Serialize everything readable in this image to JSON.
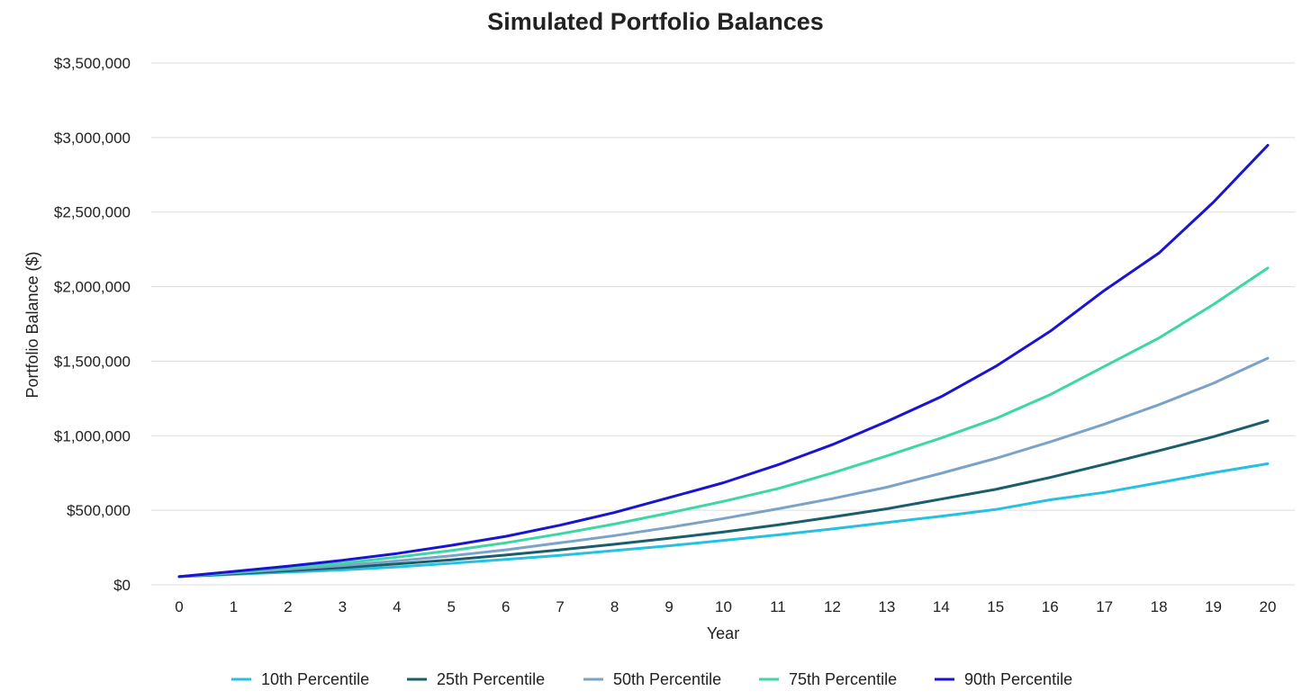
{
  "chart_data": {
    "type": "line",
    "title": "Simulated Portfolio Balances",
    "xlabel": "Year",
    "ylabel": "Portfolio Balance ($)",
    "x": [
      0,
      1,
      2,
      3,
      4,
      5,
      6,
      7,
      8,
      9,
      10,
      11,
      12,
      13,
      14,
      15,
      16,
      17,
      18,
      19,
      20
    ],
    "x_tick_labels": [
      "0",
      "1",
      "2",
      "3",
      "4",
      "5",
      "6",
      "7",
      "8",
      "9",
      "10",
      "11",
      "12",
      "13",
      "14",
      "15",
      "16",
      "17",
      "18",
      "19",
      "20"
    ],
    "ylim": [
      0,
      3500000
    ],
    "y_ticks": [
      0,
      500000,
      1000000,
      1500000,
      2000000,
      2500000,
      3000000,
      3500000
    ],
    "y_tick_labels": [
      "$0",
      "$500,000",
      "$1,000,000",
      "$1,500,000",
      "$2,000,000",
      "$2,500,000",
      "$3,000,000",
      "$3,500,000"
    ],
    "grid": true,
    "legend_position": "bottom",
    "series": [
      {
        "name": "10th Percentile",
        "color": "#26c0e0",
        "values": [
          55000,
          70000,
          85000,
          100000,
          120000,
          145000,
          170000,
          198000,
          230000,
          262000,
          298000,
          335000,
          375000,
          418000,
          460000,
          505000,
          570000,
          620000,
          685000,
          752000,
          812000
        ]
      },
      {
        "name": "25th Percentile",
        "color": "#1b5e6b",
        "values": [
          55000,
          75000,
          95000,
          115000,
          140000,
          168000,
          200000,
          235000,
          272000,
          312000,
          355000,
          402000,
          455000,
          510000,
          575000,
          640000,
          720000,
          808000,
          900000,
          993000,
          1100000
        ]
      },
      {
        "name": "50th Percentile",
        "color": "#7ba3c8",
        "values": [
          55000,
          80000,
          105000,
          130000,
          160000,
          195000,
          235000,
          282000,
          330000,
          385000,
          445000,
          510000,
          578000,
          655000,
          748000,
          848000,
          958000,
          1078000,
          1208000,
          1352000,
          1520000
        ]
      },
      {
        "name": "75th Percentile",
        "color": "#3dd6a5",
        "values": [
          55000,
          85000,
          115000,
          145000,
          185000,
          230000,
          282000,
          342000,
          408000,
          482000,
          560000,
          645000,
          750000,
          865000,
          985000,
          1115000,
          1275000,
          1465000,
          1655000,
          1880000,
          2125000
        ]
      },
      {
        "name": "90th Percentile",
        "color": "#1a14d2",
        "values": [
          55000,
          90000,
          125000,
          165000,
          210000,
          265000,
          325000,
          400000,
          485000,
          585000,
          685000,
          805000,
          940000,
          1095000,
          1262000,
          1465000,
          1700000,
          1975000,
          2225000,
          2565000,
          2948000
        ]
      }
    ]
  }
}
